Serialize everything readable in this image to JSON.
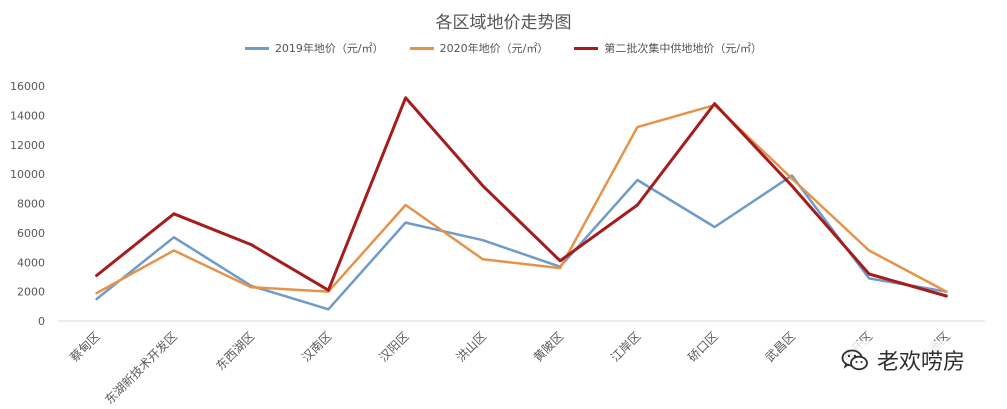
{
  "chart_data": {
    "type": "line",
    "title": "各区域地价走势图",
    "categories": [
      "蔡甸区",
      "东湖新技术开发区",
      "东西湖区",
      "汉南区",
      "汉阳区",
      "洪山区",
      "黄陂区",
      "江岸区",
      "硚口区",
      "武昌区",
      "经开区",
      "新洲区"
    ],
    "series": [
      {
        "name": "2019年地价（元/㎡）",
        "color": "#6F9BC8",
        "values": [
          1500,
          5700,
          2400,
          800,
          6700,
          5500,
          3700,
          9600,
          6400,
          9900,
          2900,
          2000
        ]
      },
      {
        "name": "2020年地价（元/㎡）",
        "color": "#E6934A",
        "values": [
          1900,
          4800,
          2300,
          2000,
          7900,
          4200,
          3600,
          13200,
          14700,
          9700,
          4800,
          2000
        ]
      },
      {
        "name": "第二批次集中供地地价（元/㎡）",
        "color": "#A51C1C",
        "values": [
          3100,
          7300,
          5200,
          2100,
          15200,
          9200,
          4100,
          7900,
          14800,
          9200,
          3200,
          1700
        ]
      }
    ],
    "y_ticks": [
      "0",
      "2000",
      "4000",
      "6000",
      "8000",
      "10000",
      "12000",
      "14000",
      "16000"
    ],
    "ylim": [
      0,
      16000
    ],
    "xlabel": "",
    "ylabel": "",
    "grid": false,
    "legend_position": "top"
  },
  "watermark": {
    "text": "老欢唠房",
    "icon": "wechat-icon"
  }
}
